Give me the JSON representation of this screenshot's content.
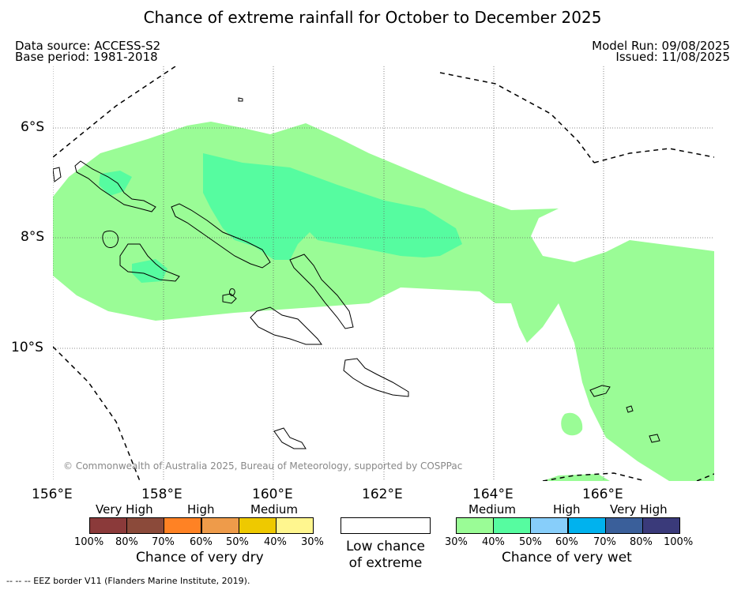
{
  "title": "Chance of extreme rainfall for October to December 2025",
  "meta": {
    "data_source": "Data source: ACCESS-S2",
    "base_period": "Base period: 1981-2018",
    "model_run": "Model Run: 09/08/2025",
    "issued": "Issued: 11/08/2025"
  },
  "map": {
    "lat_labels": [
      "6°S",
      "8°S",
      "10°S"
    ],
    "lon_labels": [
      "156°E",
      "158°E",
      "160°E",
      "162°E",
      "164°E",
      "166°E"
    ],
    "copyright": "© Commonwealth of Australia 2025, Bureau of Meteorology, supported by COSPPac",
    "colors": {
      "medium_wet": "#9afc96",
      "high_wet": "#56fca0",
      "land_outline": "#000000"
    }
  },
  "legend": {
    "dry": {
      "headers": [
        "Very High",
        "High",
        "Medium"
      ],
      "ticks": [
        "100%",
        "80%",
        "70%",
        "60%",
        "50%",
        "40%",
        "30%"
      ],
      "colors": [
        "#8b3a3a",
        "#8b4a3a",
        "#ff8224",
        "#ee9b4a",
        "#eec900",
        "#fff68f"
      ],
      "caption": "Chance of very dry"
    },
    "neutral": {
      "caption_line1": "Low chance",
      "caption_line2": "of extreme",
      "color": "#ffffff"
    },
    "wet": {
      "headers": [
        "Medium",
        "High",
        "Very High"
      ],
      "ticks": [
        "30%",
        "40%",
        "50%",
        "60%",
        "70%",
        "80%",
        "100%"
      ],
      "colors": [
        "#9afc96",
        "#56fca0",
        "#87cefa",
        "#00b2ee",
        "#3a5f9a",
        "#3a3a7a"
      ],
      "caption": "Chance of very wet"
    }
  },
  "footer": {
    "eez_note": "--  --  -- EEZ border V11 (Flanders Marine Institute, 2019)."
  }
}
